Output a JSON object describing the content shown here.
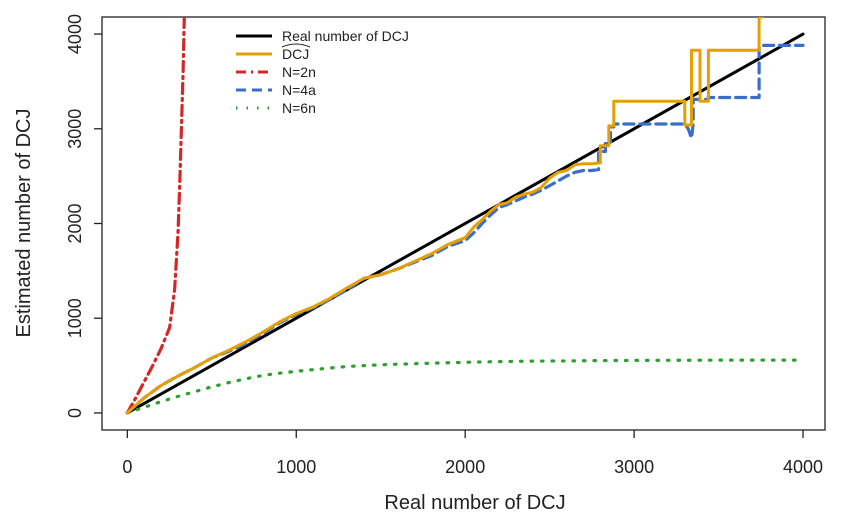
{
  "chart_data": {
    "type": "line",
    "xlabel": "Real number of DCJ",
    "ylabel": "Estimated number of DCJ",
    "xlim": [
      -150,
      4130
    ],
    "ylim": [
      -180,
      4180
    ],
    "xticks": [
      0,
      1000,
      2000,
      3000,
      4000
    ],
    "yticks": [
      0,
      1000,
      2000,
      3000,
      4000
    ],
    "legend_position": "top-left",
    "series": [
      {
        "name": "Real number of DCJ",
        "color": "#000000",
        "dash": "solid",
        "x": [
          0,
          4000
        ],
        "y": [
          0,
          4000
        ]
      },
      {
        "name": "DCJ",
        "name_decoration": "wide-hat",
        "color": "#e69f00",
        "dash": "solid",
        "x": [
          0,
          100,
          200,
          300,
          400,
          500,
          600,
          700,
          800,
          900,
          1000,
          1100,
          1200,
          1300,
          1400,
          1500,
          1600,
          1700,
          1800,
          1900,
          2000,
          2050,
          2100,
          2150,
          2200,
          2250,
          2300,
          2350,
          2400,
          2450,
          2500,
          2550,
          2600,
          2650,
          2700,
          2750,
          2800,
          2800,
          2850,
          2850,
          2880,
          2880,
          3300,
          3300,
          3340,
          3340,
          3390,
          3390,
          3440,
          3440,
          3740,
          3740,
          3760
        ],
        "y": [
          0,
          160,
          290,
          390,
          480,
          580,
          660,
          750,
          850,
          960,
          1050,
          1120,
          1210,
          1320,
          1420,
          1460,
          1520,
          1600,
          1680,
          1780,
          1850,
          1960,
          2040,
          2130,
          2200,
          2220,
          2280,
          2310,
          2330,
          2380,
          2480,
          2540,
          2560,
          2620,
          2630,
          2630,
          2640,
          2820,
          2820,
          3030,
          3030,
          3290,
          3290,
          3040,
          3040,
          3830,
          3830,
          3290,
          3290,
          3830,
          3830,
          4180,
          4180
        ]
      },
      {
        "name": "N=2n",
        "color": "#d62728",
        "dash": "dashdot",
        "x": [
          0,
          50,
          100,
          150,
          200,
          250,
          280,
          300,
          310,
          320,
          330,
          337
        ],
        "y": [
          0,
          160,
          330,
          500,
          680,
          900,
          1300,
          1900,
          2400,
          3000,
          3600,
          4180
        ]
      },
      {
        "name": "N=4a",
        "color": "#3a6fc9",
        "dash": "dashed",
        "x": [
          0,
          100,
          200,
          300,
          400,
          500,
          600,
          700,
          800,
          900,
          1000,
          1100,
          1200,
          1300,
          1400,
          1500,
          1600,
          1700,
          1800,
          1900,
          2000,
          2050,
          2100,
          2150,
          2200,
          2250,
          2300,
          2350,
          2400,
          2450,
          2500,
          2550,
          2600,
          2650,
          2700,
          2750,
          2790,
          2790,
          2830,
          2830,
          2860,
          2860,
          2880,
          2880,
          2950,
          3300,
          3320,
          3340,
          3350,
          3350,
          3440,
          3440,
          3740,
          3740,
          3780,
          4000
        ],
        "y": [
          0,
          160,
          290,
          390,
          480,
          580,
          650,
          730,
          840,
          950,
          1040,
          1110,
          1200,
          1300,
          1420,
          1460,
          1520,
          1590,
          1660,
          1760,
          1820,
          1900,
          2000,
          2090,
          2170,
          2200,
          2240,
          2280,
          2310,
          2350,
          2400,
          2450,
          2500,
          2540,
          2560,
          2560,
          2570,
          2760,
          2760,
          2860,
          2860,
          3020,
          3020,
          3050,
          3050,
          3050,
          3000,
          2900,
          3050,
          3310,
          3310,
          3330,
          3330,
          3880,
          3880,
          3880
        ]
      },
      {
        "name": "N=6n",
        "color": "#2ca02c",
        "dash": "dotted",
        "x": [
          0,
          100,
          200,
          300,
          400,
          500,
          600,
          700,
          800,
          900,
          1000,
          1100,
          1200,
          1300,
          1400,
          1500,
          1600,
          1700,
          1800,
          2000,
          2200,
          2400,
          2600,
          2800,
          3000,
          3200,
          3400,
          3600,
          3800,
          4000
        ],
        "y": [
          0,
          60,
          120,
          175,
          225,
          275,
          320,
          360,
          395,
          420,
          440,
          458,
          475,
          490,
          500,
          508,
          515,
          520,
          525,
          535,
          542,
          547,
          550,
          553,
          555,
          556,
          557,
          558,
          558,
          558
        ]
      }
    ]
  }
}
